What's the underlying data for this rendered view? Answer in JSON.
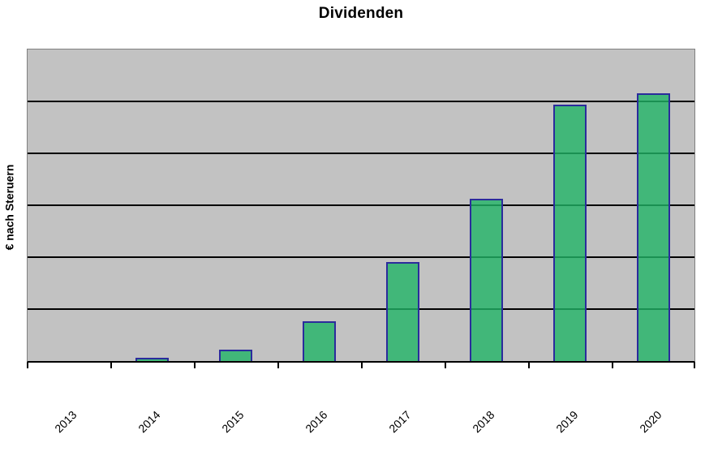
{
  "chart_data": {
    "type": "bar",
    "title": "Dividenden",
    "xlabel": "",
    "ylabel": "€ nach Steruern",
    "categories": [
      "2013",
      "2014",
      "2015",
      "2016",
      "2017",
      "2018",
      "2019",
      "2020"
    ],
    "values": [
      0,
      0.06,
      0.22,
      0.76,
      1.91,
      3.13,
      4.93,
      5.15
    ],
    "value_unit": "gridline-units (y axis has no numeric tick labels)",
    "ylim": [
      0,
      6
    ],
    "y_gridline_interval": 1,
    "y_tick_labels_visible": false,
    "grid": "horizontal",
    "legend": "none",
    "x_label_rotation_deg": -45,
    "colors": {
      "page_background": "#FFFFFF",
      "plot_background": "#C2C2C2",
      "plot_border": "#808080",
      "gridline": "#000000",
      "axis": "#000000",
      "bar_fill": "#21B467CC",
      "bar_fill_rendered_over_background": "#41B478",
      "bar_border": "#2B2B9C",
      "text": "#000000"
    }
  }
}
